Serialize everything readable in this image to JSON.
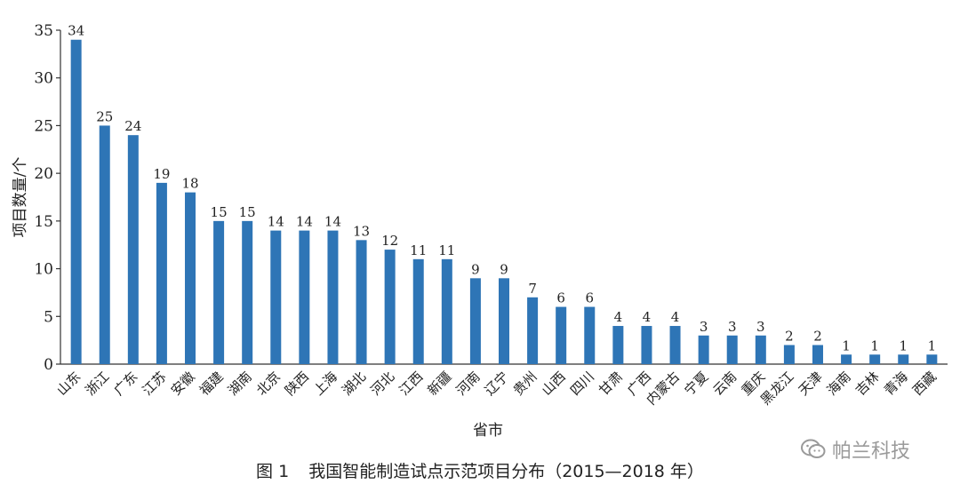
{
  "chart_data": {
    "type": "bar",
    "xlabel": "省市",
    "ylabel": "项目数量/个",
    "ylim": [
      0,
      35
    ],
    "yticks": [
      0,
      5,
      10,
      15,
      20,
      25,
      30,
      35
    ],
    "grid": false,
    "bar_color": "#2e75b6",
    "categories": [
      "山东",
      "浙江",
      "广东",
      "江苏",
      "安徽",
      "福建",
      "湖南",
      "北京",
      "陕西",
      "上海",
      "湖北",
      "河北",
      "江西",
      "新疆",
      "河南",
      "辽宁",
      "贵州",
      "山西",
      "四川",
      "甘肃",
      "广西",
      "内蒙古",
      "宁夏",
      "云南",
      "重庆",
      "黑龙江",
      "天津",
      "海南",
      "吉林",
      "青海",
      "西藏"
    ],
    "values": [
      34,
      25,
      24,
      19,
      18,
      15,
      15,
      14,
      14,
      14,
      13,
      12,
      11,
      11,
      9,
      9,
      7,
      6,
      6,
      4,
      4,
      4,
      3,
      3,
      3,
      2,
      2,
      1,
      1,
      1,
      1
    ],
    "value_labels": [
      "34",
      "25",
      "24",
      "19",
      "18",
      "15",
      "15",
      "14",
      "14",
      "14",
      "13",
      "12",
      "11",
      "11",
      "9",
      "9",
      "7",
      "6",
      "6",
      "4",
      "4",
      "4",
      "3",
      "3",
      "3",
      "2",
      "2",
      "1",
      "1",
      "1",
      "1"
    ]
  },
  "caption": {
    "figure_no": "图 1",
    "text": "我国智能制造试点示范项目分布（2015—2018 年）"
  },
  "watermark": {
    "text": "帕兰科技",
    "icon": "wechat-icon"
  }
}
